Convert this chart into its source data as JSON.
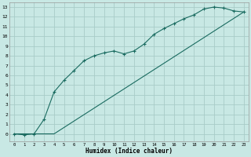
{
  "xlabel": "Humidex (Indice chaleur)",
  "bg_color": "#c8e8e4",
  "grid_color": "#a8ccc8",
  "line_color": "#1a6b60",
  "xlim": [
    -0.5,
    23.5
  ],
  "ylim": [
    -0.8,
    13.5
  ],
  "xticks": [
    0,
    1,
    2,
    3,
    4,
    5,
    6,
    7,
    8,
    9,
    10,
    11,
    12,
    13,
    14,
    15,
    16,
    17,
    18,
    19,
    20,
    21,
    22,
    23
  ],
  "yticks": [
    0,
    1,
    2,
    3,
    4,
    5,
    6,
    7,
    8,
    9,
    10,
    11,
    12,
    13
  ],
  "curve1_x": [
    0,
    1,
    2,
    3,
    4,
    5,
    6,
    7,
    8,
    9,
    10,
    11,
    12,
    13,
    14,
    15,
    16,
    17,
    18,
    19,
    20,
    21,
    22,
    23
  ],
  "curve1_y": [
    0,
    -0.1,
    0,
    1.5,
    4.3,
    5.5,
    6.5,
    7.5,
    8.0,
    8.3,
    8.5,
    8.2,
    8.5,
    9.2,
    10.2,
    10.8,
    11.3,
    11.8,
    12.2,
    12.8,
    13.0,
    12.9,
    12.6,
    12.5
  ],
  "curve2_x": [
    0,
    4,
    23
  ],
  "curve2_y": [
    0,
    0,
    12.5
  ]
}
